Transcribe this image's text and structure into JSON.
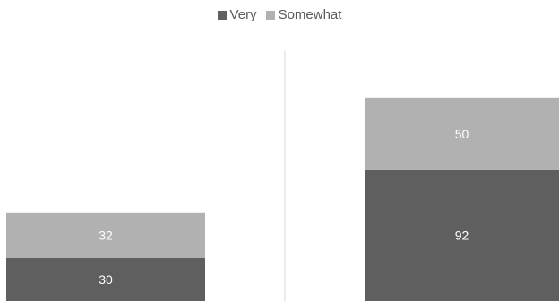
{
  "chart_data": {
    "type": "bar",
    "stacked": true,
    "categories": [
      "",
      ""
    ],
    "series": [
      {
        "name": "Very",
        "values": [
          30,
          92
        ],
        "color": "#5f5f5f"
      },
      {
        "name": "Somewhat",
        "values": [
          32,
          50
        ],
        "color": "#b1b1b1"
      }
    ],
    "title": "",
    "xlabel": "",
    "ylabel": "",
    "legend_position": "top-center",
    "grid": false,
    "divider_between_categories": true,
    "label_color": "#ffffff"
  }
}
